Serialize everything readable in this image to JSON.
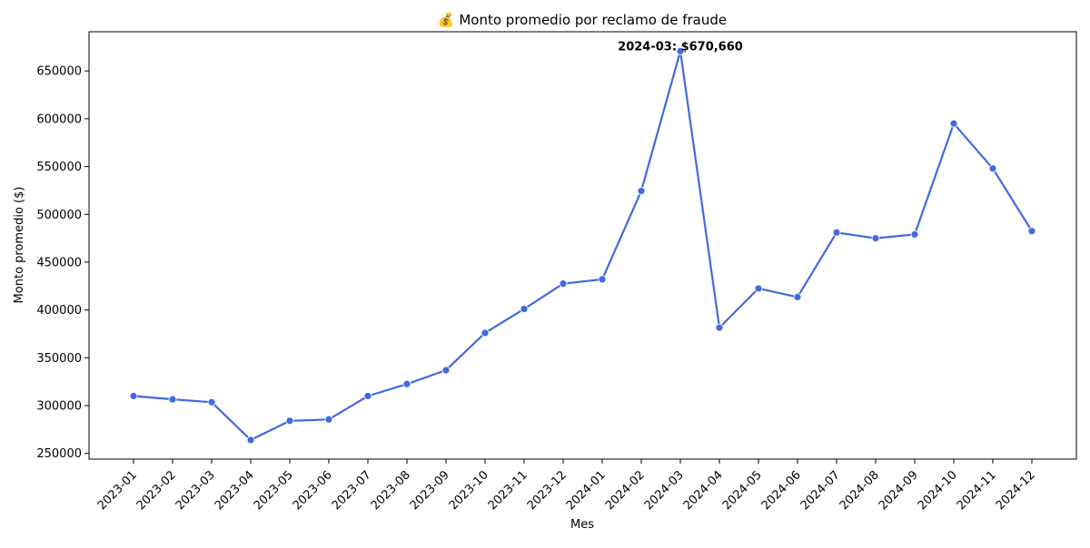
{
  "chart_data": {
    "type": "line",
    "title": "💰 Monto promedio por reclamo de fraude",
    "xlabel": "Mes",
    "ylabel": "Monto promedio ($)",
    "categories": [
      "2023-01",
      "2023-02",
      "2023-03",
      "2023-04",
      "2023-05",
      "2023-06",
      "2023-07",
      "2023-08",
      "2023-09",
      "2023-10",
      "2023-11",
      "2023-12",
      "2024-01",
      "2024-02",
      "2024-03",
      "2024-04",
      "2024-05",
      "2024-06",
      "2024-07",
      "2024-08",
      "2024-09",
      "2024-10",
      "2024-11",
      "2024-12"
    ],
    "values": [
      310000,
      306500,
      303500,
      264000,
      284000,
      285500,
      310000,
      322500,
      337000,
      376000,
      401000,
      427500,
      432000,
      524500,
      670660,
      381500,
      422500,
      413500,
      481000,
      475000,
      479000,
      595000,
      548000,
      482500
    ],
    "yticks": [
      250000,
      300000,
      350000,
      400000,
      450000,
      500000,
      550000,
      600000,
      650000
    ],
    "ylim": [
      244000,
      691000
    ],
    "annotation": {
      "category": "2024-03",
      "text": "2024-03: $670,660"
    },
    "line_color": "#4169e1",
    "grid": false,
    "legend": "none"
  }
}
